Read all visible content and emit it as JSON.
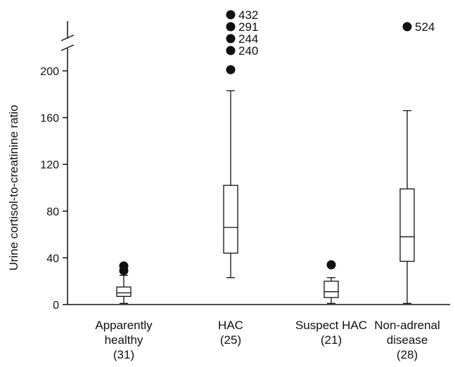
{
  "chart_data": {
    "type": "boxplot",
    "ylabel": "Urine cortisol-to-creatinine ratio",
    "yticks": [
      0,
      40,
      80,
      120,
      160,
      200
    ],
    "ylim": [
      0,
      200
    ],
    "axis_break": true,
    "categories": [
      {
        "lines": [
          "Apparently",
          "healthy",
          "(31)"
        ],
        "min": 1,
        "q1": 7,
        "median": 10,
        "q3": 15,
        "max": 25,
        "outliers": [
          {
            "value": 29
          },
          {
            "value": 33
          }
        ]
      },
      {
        "lines": [
          "HAC",
          "(25)"
        ],
        "min": 23,
        "q1": 44,
        "median": 66,
        "q3": 102,
        "max": 183,
        "outliers": [
          {
            "value": 201
          },
          {
            "value": 240,
            "label": "240"
          },
          {
            "value": 244,
            "label": "244"
          },
          {
            "value": 291,
            "label": "291"
          },
          {
            "value": 432,
            "label": "432"
          }
        ]
      },
      {
        "lines": [
          "Suspect HAC",
          "(21)"
        ],
        "min": 1,
        "q1": 6,
        "median": 11,
        "q3": 20,
        "max": 23,
        "outliers": [
          {
            "value": 34
          }
        ]
      },
      {
        "lines": [
          "Non-adrenal",
          "disease",
          "(28)"
        ],
        "min": 1,
        "q1": 37,
        "median": 58,
        "q3": 99,
        "max": 166,
        "outliers": [
          {
            "value": 524,
            "label": "524"
          }
        ]
      }
    ]
  }
}
